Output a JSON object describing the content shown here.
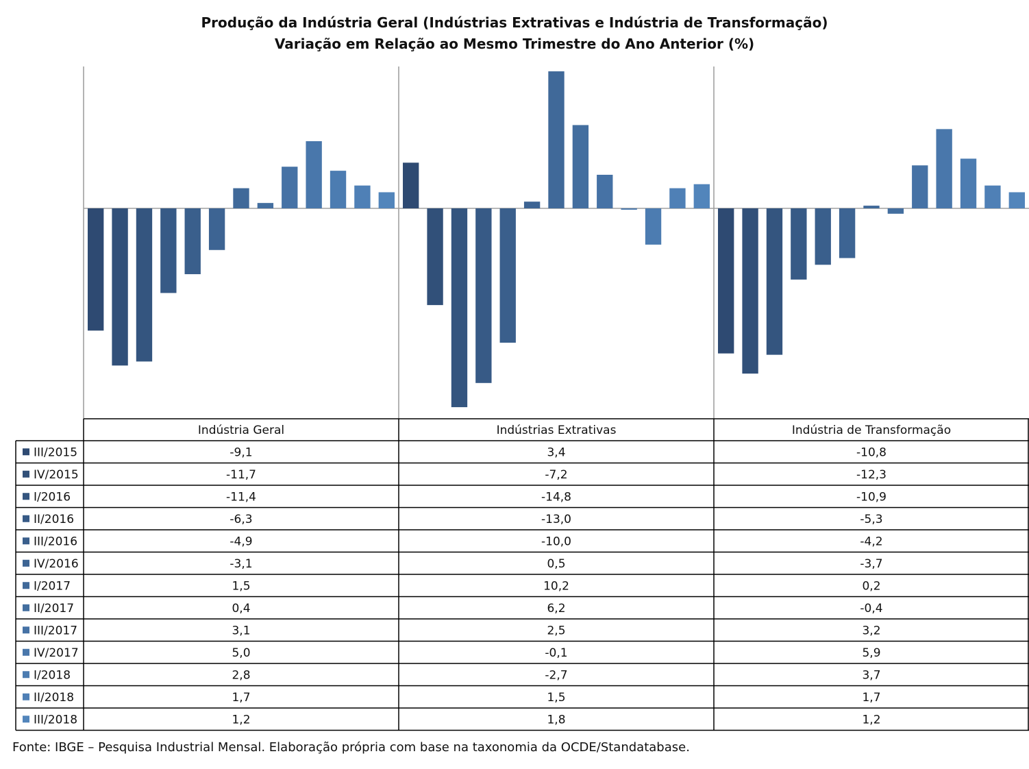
{
  "chart_data": {
    "type": "bar",
    "title": "Produção da Indústria Geral (Indústrias Extrativas e Indústria de Transformação)",
    "subtitle": "Variação em Relação ao Mesmo Trimestre do Ano Anterior (%)",
    "categories": [
      "Indústria Geral",
      "Indústrias Extrativas",
      "Indústria de Transformação"
    ],
    "ylim": [
      -16,
      11.5
    ],
    "grid": false,
    "legend": "data-table-left",
    "series": [
      {
        "name": "III/2015",
        "display": [
          "-9,1",
          "3,4",
          "-10,8"
        ],
        "values": [
          -9.1,
          3.4,
          -10.8
        ],
        "color": "#2e4a72"
      },
      {
        "name": "IV/2015",
        "display": [
          "-11,7",
          "-7,2",
          "-12,3"
        ],
        "values": [
          -11.7,
          -7.2,
          -12.3
        ],
        "color": "#315079"
      },
      {
        "name": "I/2016",
        "display": [
          "-11,4",
          "-14,8",
          "-10,9"
        ],
        "values": [
          -11.4,
          -14.8,
          -10.9
        ],
        "color": "#34557f"
      },
      {
        "name": "II/2016",
        "display": [
          "-6,3",
          "-13,0",
          "-5,3"
        ],
        "values": [
          -6.3,
          -13.0,
          -5.3
        ],
        "color": "#375a86"
      },
      {
        "name": "III/2016",
        "display": [
          "-4,9",
          "-10,0",
          "-4,2"
        ],
        "values": [
          -4.9,
          -10.0,
          -4.2
        ],
        "color": "#3a5f8c"
      },
      {
        "name": "IV/2016",
        "display": [
          "-3,1",
          "0,5",
          "-3,7"
        ],
        "values": [
          -3.1,
          0.5,
          -3.7
        ],
        "color": "#3d6493"
      },
      {
        "name": "I/2017",
        "display": [
          "1,5",
          "10,2",
          "0,2"
        ],
        "values": [
          1.5,
          10.2,
          0.2
        ],
        "color": "#406999"
      },
      {
        "name": "II/2017",
        "display": [
          "0,4",
          "6,2",
          "-0,4"
        ],
        "values": [
          0.4,
          6.2,
          -0.4
        ],
        "color": "#436e9f"
      },
      {
        "name": "III/2017",
        "display": [
          "3,1",
          "2,5",
          "3,2"
        ],
        "values": [
          3.1,
          2.5,
          3.2
        ],
        "color": "#4672a5"
      },
      {
        "name": "IV/2017",
        "display": [
          "5,0",
          "-0,1",
          "5,9"
        ],
        "values": [
          5.0,
          -0.1,
          5.9
        ],
        "color": "#4977ab"
      },
      {
        "name": "I/2018",
        "display": [
          "2,8",
          "-2,7",
          "3,7"
        ],
        "values": [
          2.8,
          -2.7,
          3.7
        ],
        "color": "#4c7cb1"
      },
      {
        "name": "II/2018",
        "display": [
          "1,7",
          "1,5",
          "1,7"
        ],
        "values": [
          1.7,
          1.5,
          1.7
        ],
        "color": "#4f80b6"
      },
      {
        "name": "III/2018",
        "display": [
          "1,2",
          "1,8",
          "1,2"
        ],
        "values": [
          1.2,
          1.8,
          1.2
        ],
        "color": "#5285bb"
      }
    ]
  },
  "source": "Fonte: IBGE – Pesquisa Industrial Mensal. Elaboração própria com base na taxonomia da OCDE/Standatabase."
}
